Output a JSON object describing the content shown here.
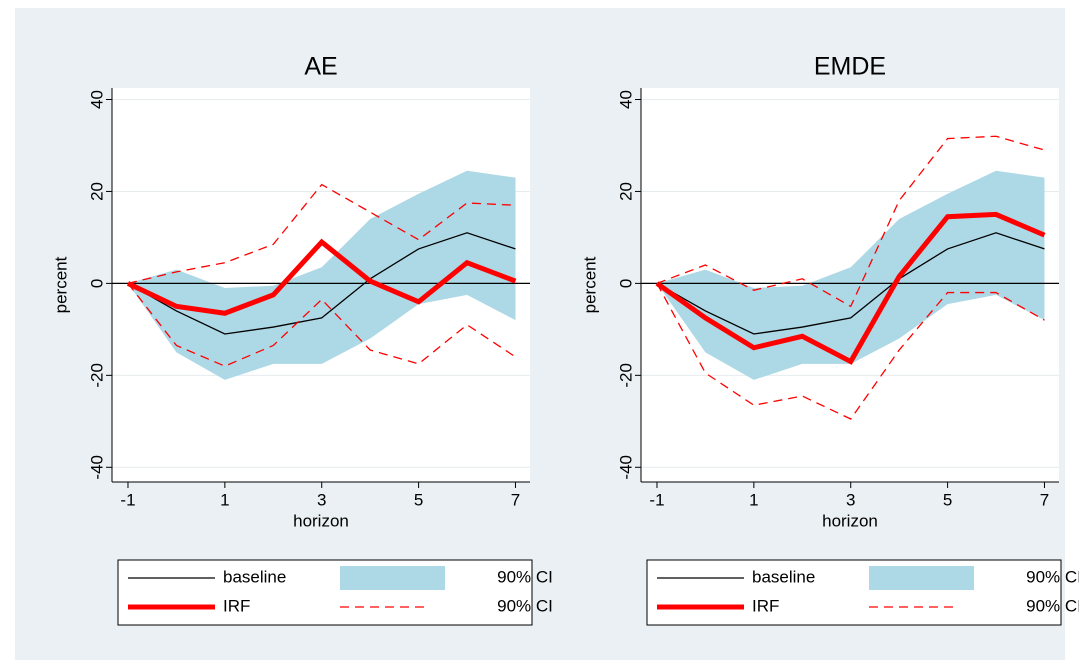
{
  "chart_data": [
    {
      "type": "line",
      "title": "AE",
      "x_label": "horizon",
      "y_label": "percent",
      "x": [
        -1,
        0,
        1,
        2,
        3,
        4,
        5,
        6,
        7
      ],
      "xlim": [
        -1.33,
        7.3
      ],
      "ylim": [
        -43.2,
        42.5
      ],
      "xticks": [
        -1,
        1,
        3,
        5,
        7
      ],
      "yticks": [
        -40,
        -20,
        0,
        20,
        40
      ],
      "grid": true,
      "yline": 0,
      "series": [
        {
          "name": "baseline",
          "color": "#000000",
          "style": "solid",
          "values": [
            0,
            -6,
            -11,
            -9.5,
            -7.5,
            1,
            7.5,
            11,
            7.5
          ]
        },
        {
          "name": "90% CI",
          "color": "#add8e6",
          "style": "band",
          "lower": [
            0,
            -15,
            -21,
            -17.5,
            -17.5,
            -12,
            -4.5,
            -2.5,
            -8
          ],
          "upper": [
            0,
            3,
            -1,
            -0.5,
            3.5,
            14,
            19.5,
            24.5,
            23
          ]
        },
        {
          "name": "IRF",
          "color": "#ff0000",
          "style": "thick",
          "values": [
            0,
            -5,
            -6.5,
            -2.5,
            9,
            0.5,
            -4,
            4.5,
            0.5
          ]
        },
        {
          "name": "90% CI",
          "color": "#ff0000",
          "style": "dashed",
          "lower": [
            0,
            -13.5,
            -18,
            -13.5,
            -3.5,
            -14.5,
            -17.5,
            -9,
            -16
          ],
          "upper": [
            0,
            2.5,
            4.5,
            8.5,
            21.5,
            15.5,
            9.5,
            17.5,
            17
          ]
        }
      ]
    },
    {
      "type": "line",
      "title": "EMDE",
      "x_label": "horizon",
      "y_label": "percent",
      "x": [
        -1,
        0,
        1,
        2,
        3,
        4,
        5,
        6,
        7
      ],
      "xlim": [
        -1.33,
        7.3
      ],
      "ylim": [
        -43.2,
        42.5
      ],
      "xticks": [
        -1,
        1,
        3,
        5,
        7
      ],
      "yticks": [
        -40,
        -20,
        0,
        20,
        40
      ],
      "grid": true,
      "yline": 0,
      "series": [
        {
          "name": "baseline",
          "color": "#000000",
          "style": "solid",
          "values": [
            0,
            -6,
            -11,
            -9.5,
            -7.5,
            1,
            7.5,
            11,
            7.5
          ]
        },
        {
          "name": "90% CI",
          "color": "#add8e6",
          "style": "band",
          "lower": [
            0,
            -15,
            -21,
            -17.5,
            -17.5,
            -12,
            -4.5,
            -2.5,
            -8
          ],
          "upper": [
            0,
            3,
            -1,
            -0.5,
            3.5,
            14,
            19.5,
            24.5,
            23
          ]
        },
        {
          "name": "IRF",
          "color": "#ff0000",
          "style": "thick",
          "values": [
            0,
            -7.5,
            -14,
            -11.5,
            -17,
            1.5,
            14.5,
            15,
            10.5
          ]
        },
        {
          "name": "90% CI",
          "color": "#ff0000",
          "style": "dashed",
          "lower": [
            0,
            -19.5,
            -26.5,
            -24.5,
            -29.5,
            -14.5,
            -2,
            -2,
            -8
          ],
          "upper": [
            0,
            4,
            -1.5,
            1,
            -5,
            18,
            31.5,
            32,
            29
          ]
        }
      ]
    }
  ]
}
